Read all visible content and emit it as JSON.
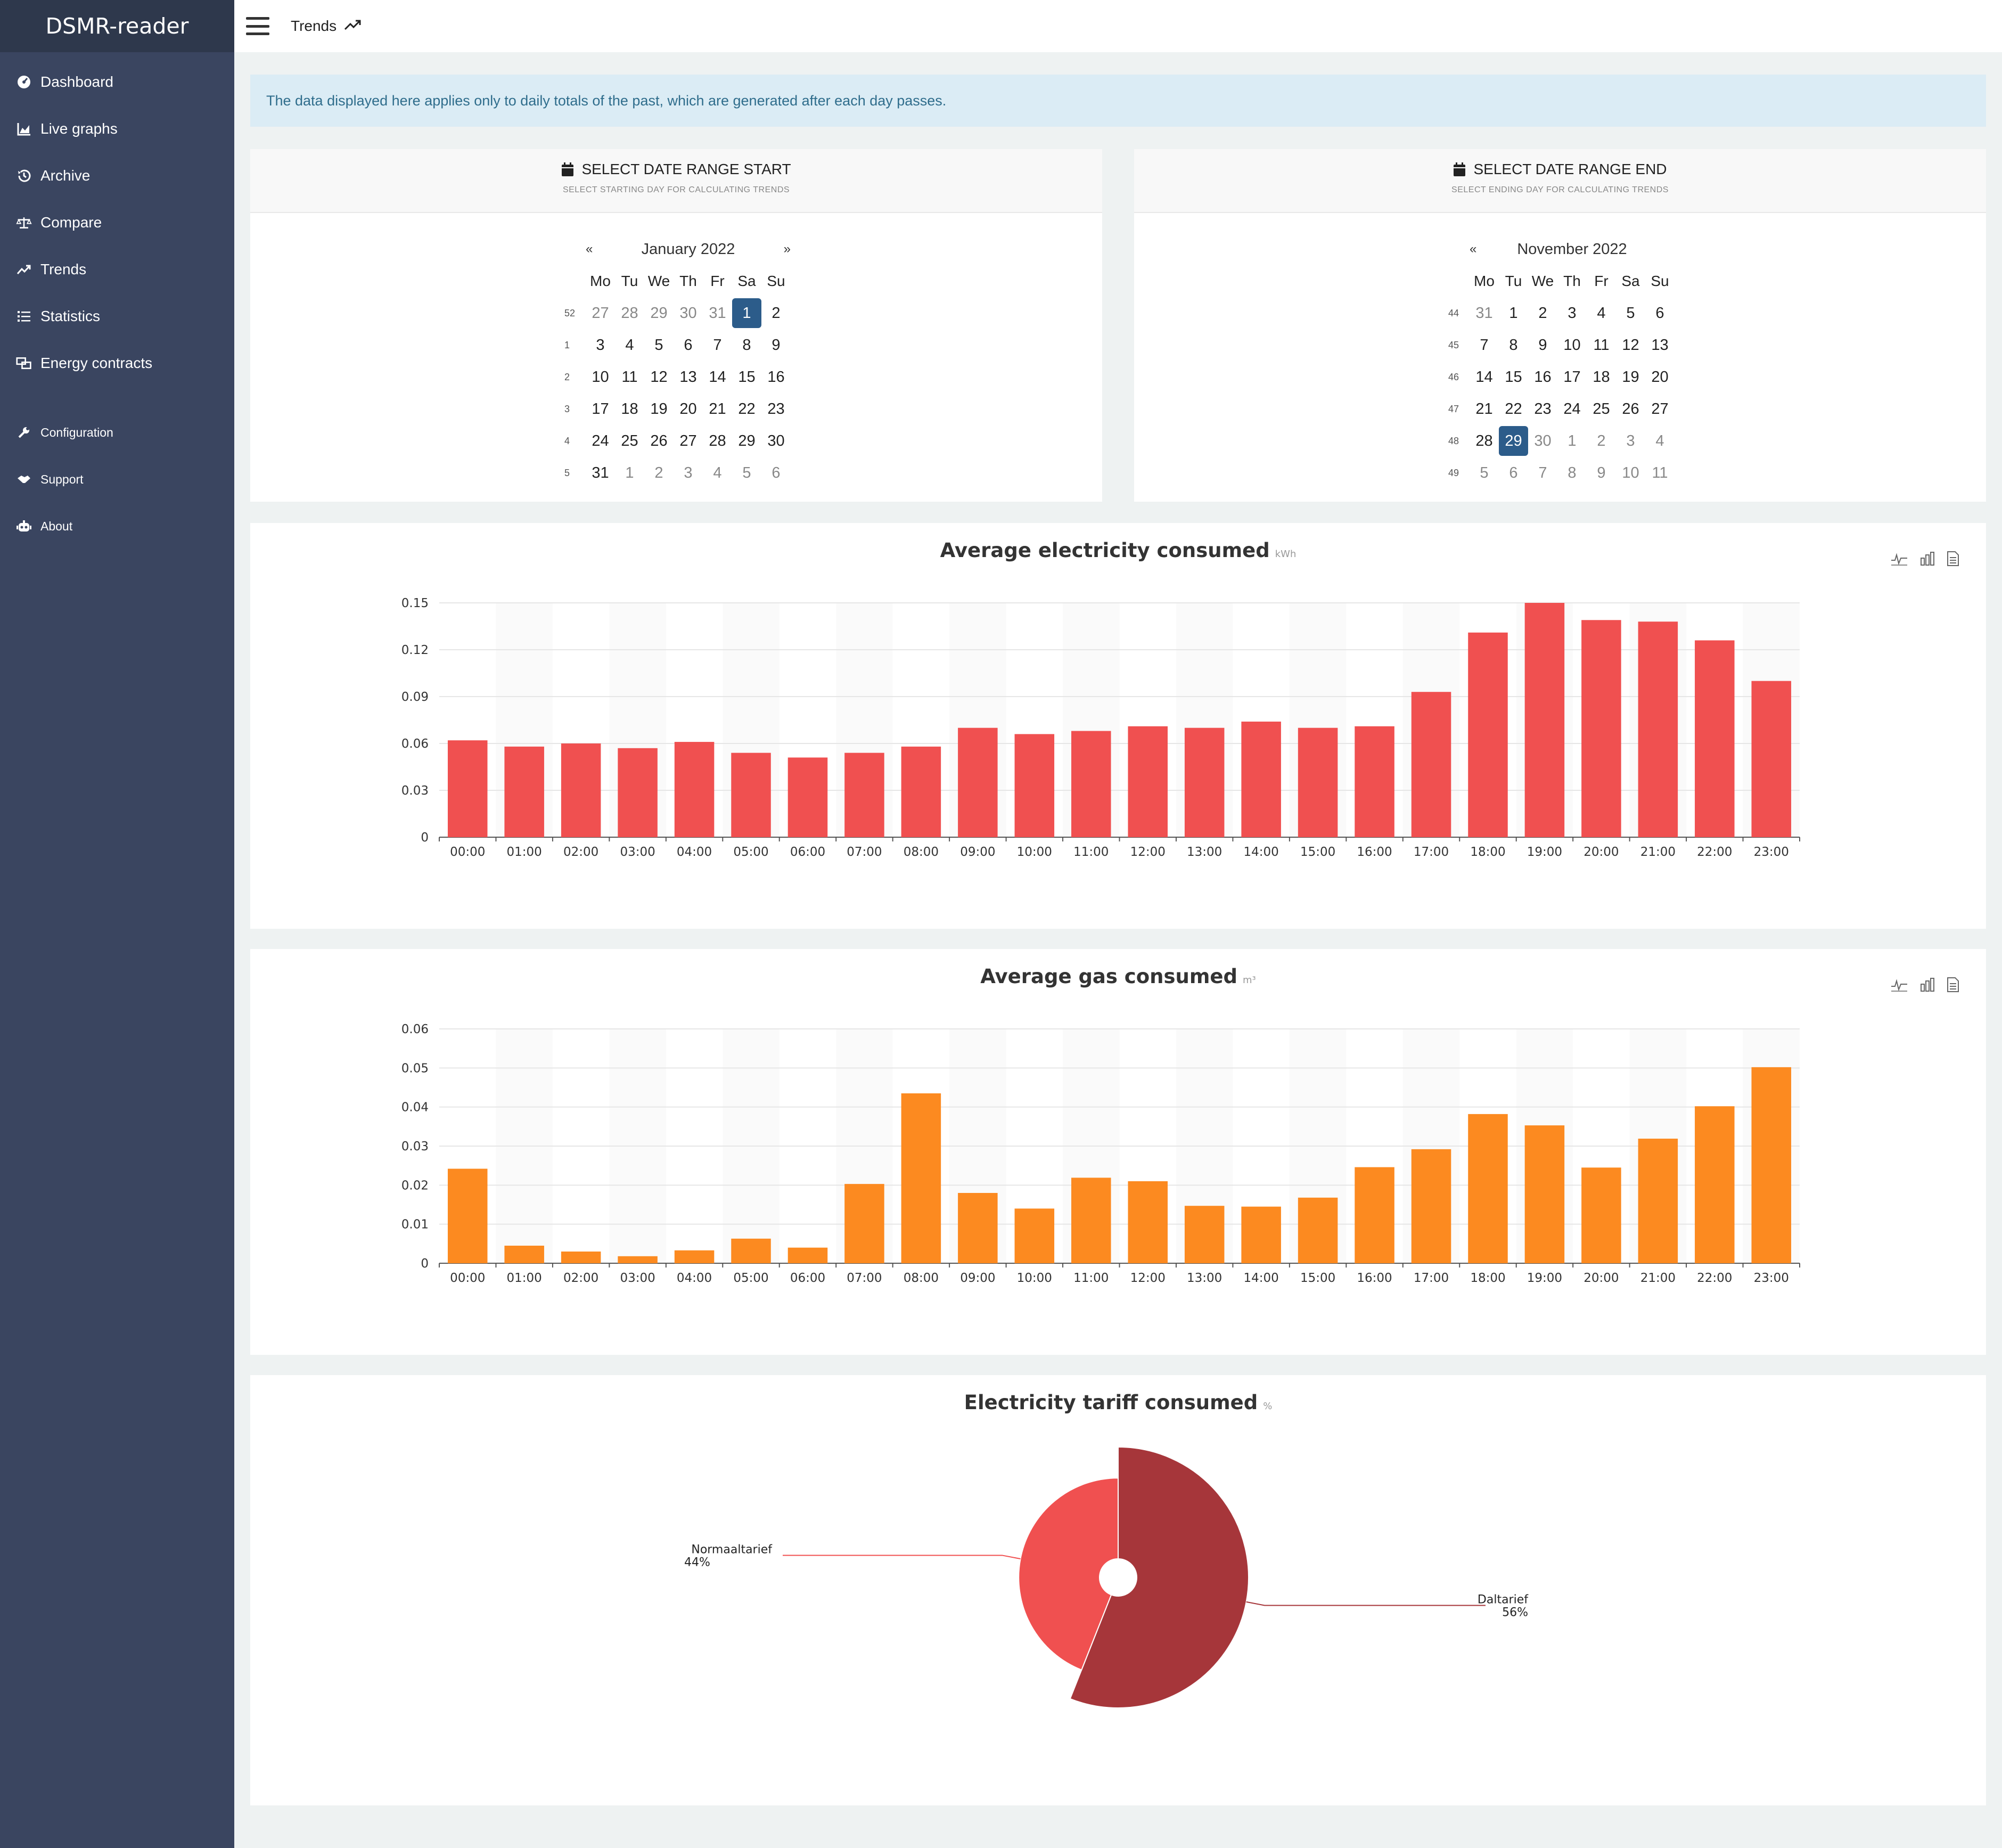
{
  "app": {
    "brand": "DSMR-reader"
  },
  "sidebar": {
    "items": [
      {
        "label": "Dashboard",
        "icon": "dashboard-icon"
      },
      {
        "label": "Live graphs",
        "icon": "area-chart-icon"
      },
      {
        "label": "Archive",
        "icon": "history-icon"
      },
      {
        "label": "Compare",
        "icon": "balance-scale-icon"
      },
      {
        "label": "Trends",
        "icon": "trend-icon"
      },
      {
        "label": "Statistics",
        "icon": "list-icon"
      },
      {
        "label": "Energy contracts",
        "icon": "contracts-icon"
      }
    ],
    "secondary": [
      {
        "label": "Configuration",
        "icon": "wrench-icon"
      },
      {
        "label": "Support",
        "icon": "handshake-icon"
      },
      {
        "label": "About",
        "icon": "robot-icon"
      }
    ]
  },
  "topbar": {
    "title": "Trends"
  },
  "alert": {
    "text": "The data displayed here applies only to daily totals of the past, which are generated after each day passes."
  },
  "date_start": {
    "title": "SELECT DATE RANGE START",
    "subtitle": "SELECT STARTING DAY FOR CALCULATING TRENDS",
    "month": "January 2022",
    "prev": "«",
    "next": "»",
    "weekdays": [
      "Mo",
      "Tu",
      "We",
      "Th",
      "Fr",
      "Sa",
      "Su"
    ],
    "weeks": [
      {
        "wk": "52",
        "days": [
          "27",
          "28",
          "29",
          "30",
          "31",
          "1",
          "2"
        ],
        "dim": [
          0,
          1,
          2,
          3,
          4
        ]
      },
      {
        "wk": "1",
        "days": [
          "3",
          "4",
          "5",
          "6",
          "7",
          "8",
          "9"
        ],
        "dim": []
      },
      {
        "wk": "2",
        "days": [
          "10",
          "11",
          "12",
          "13",
          "14",
          "15",
          "16"
        ],
        "dim": []
      },
      {
        "wk": "3",
        "days": [
          "17",
          "18",
          "19",
          "20",
          "21",
          "22",
          "23"
        ],
        "dim": []
      },
      {
        "wk": "4",
        "days": [
          "24",
          "25",
          "26",
          "27",
          "28",
          "29",
          "30"
        ],
        "dim": []
      },
      {
        "wk": "5",
        "days": [
          "31",
          "1",
          "2",
          "3",
          "4",
          "5",
          "6"
        ],
        "dim": [
          1,
          2,
          3,
          4,
          5,
          6
        ]
      }
    ],
    "selected": "1"
  },
  "date_end": {
    "title": "SELECT DATE RANGE END",
    "subtitle": "SELECT ENDING DAY FOR CALCULATING TRENDS",
    "month": "November 2022",
    "prev": "«",
    "next": "",
    "weekdays": [
      "Mo",
      "Tu",
      "We",
      "Th",
      "Fr",
      "Sa",
      "Su"
    ],
    "weeks": [
      {
        "wk": "44",
        "days": [
          "31",
          "1",
          "2",
          "3",
          "4",
          "5",
          "6"
        ],
        "dim": [
          0
        ]
      },
      {
        "wk": "45",
        "days": [
          "7",
          "8",
          "9",
          "10",
          "11",
          "12",
          "13"
        ],
        "dim": []
      },
      {
        "wk": "46",
        "days": [
          "14",
          "15",
          "16",
          "17",
          "18",
          "19",
          "20"
        ],
        "dim": []
      },
      {
        "wk": "47",
        "days": [
          "21",
          "22",
          "23",
          "24",
          "25",
          "26",
          "27"
        ],
        "dim": []
      },
      {
        "wk": "48",
        "days": [
          "28",
          "29",
          "30",
          "1",
          "2",
          "3",
          "4"
        ],
        "dim": [
          2,
          3,
          4,
          5,
          6
        ]
      },
      {
        "wk": "49",
        "days": [
          "5",
          "6",
          "7",
          "8",
          "9",
          "10",
          "11"
        ],
        "dim": [
          0,
          1,
          2,
          3,
          4,
          5,
          6
        ]
      }
    ],
    "selected": "29"
  },
  "chart_data": [
    {
      "type": "bar",
      "title": "Average electricity consumed",
      "unit": "kWh",
      "color": "#f05050",
      "categories": [
        "00:00",
        "01:00",
        "02:00",
        "03:00",
        "04:00",
        "05:00",
        "06:00",
        "07:00",
        "08:00",
        "09:00",
        "10:00",
        "11:00",
        "12:00",
        "13:00",
        "14:00",
        "15:00",
        "16:00",
        "17:00",
        "18:00",
        "19:00",
        "20:00",
        "21:00",
        "22:00",
        "23:00"
      ],
      "values": [
        0.062,
        0.058,
        0.06,
        0.057,
        0.061,
        0.054,
        0.051,
        0.054,
        0.058,
        0.07,
        0.066,
        0.068,
        0.071,
        0.07,
        0.074,
        0.07,
        0.071,
        0.093,
        0.131,
        0.15,
        0.139,
        0.138,
        0.126,
        0.1
      ],
      "ylim": [
        0,
        0.15
      ],
      "yticks": [
        "0",
        "0.03",
        "0.06",
        "0.09",
        "0.12",
        "0.15"
      ],
      "ytick_values": [
        0,
        0.03,
        0.06,
        0.09,
        0.12,
        0.15
      ],
      "grid": true
    },
    {
      "type": "bar",
      "title": "Average gas consumed",
      "unit": "m³",
      "color": "#fc8a20",
      "categories": [
        "00:00",
        "01:00",
        "02:00",
        "03:00",
        "04:00",
        "05:00",
        "06:00",
        "07:00",
        "08:00",
        "09:00",
        "10:00",
        "11:00",
        "12:00",
        "13:00",
        "14:00",
        "15:00",
        "16:00",
        "17:00",
        "18:00",
        "19:00",
        "20:00",
        "21:00",
        "22:00",
        "23:00"
      ],
      "values": [
        0.0242,
        0.0045,
        0.003,
        0.0018,
        0.0033,
        0.0063,
        0.004,
        0.0203,
        0.0435,
        0.018,
        0.014,
        0.0219,
        0.021,
        0.0147,
        0.0145,
        0.0168,
        0.0246,
        0.0292,
        0.0382,
        0.0353,
        0.0245,
        0.0319,
        0.0402,
        0.0502
      ],
      "ylim": [
        0,
        0.06
      ],
      "yticks": [
        "0",
        "0.01",
        "0.02",
        "0.03",
        "0.04",
        "0.05",
        "0.06"
      ],
      "ytick_values": [
        0,
        0.01,
        0.02,
        0.03,
        0.04,
        0.05,
        0.06
      ],
      "grid": true
    },
    {
      "type": "pie",
      "title": "Electricity tariff consumed",
      "unit": "%",
      "slices": [
        {
          "name": "Normaaltarief",
          "value": 44,
          "label": "44%",
          "color": "#f05050"
        },
        {
          "name": "Daltarief",
          "value": 56,
          "label": "56%",
          "color": "#a6363a"
        }
      ]
    }
  ]
}
